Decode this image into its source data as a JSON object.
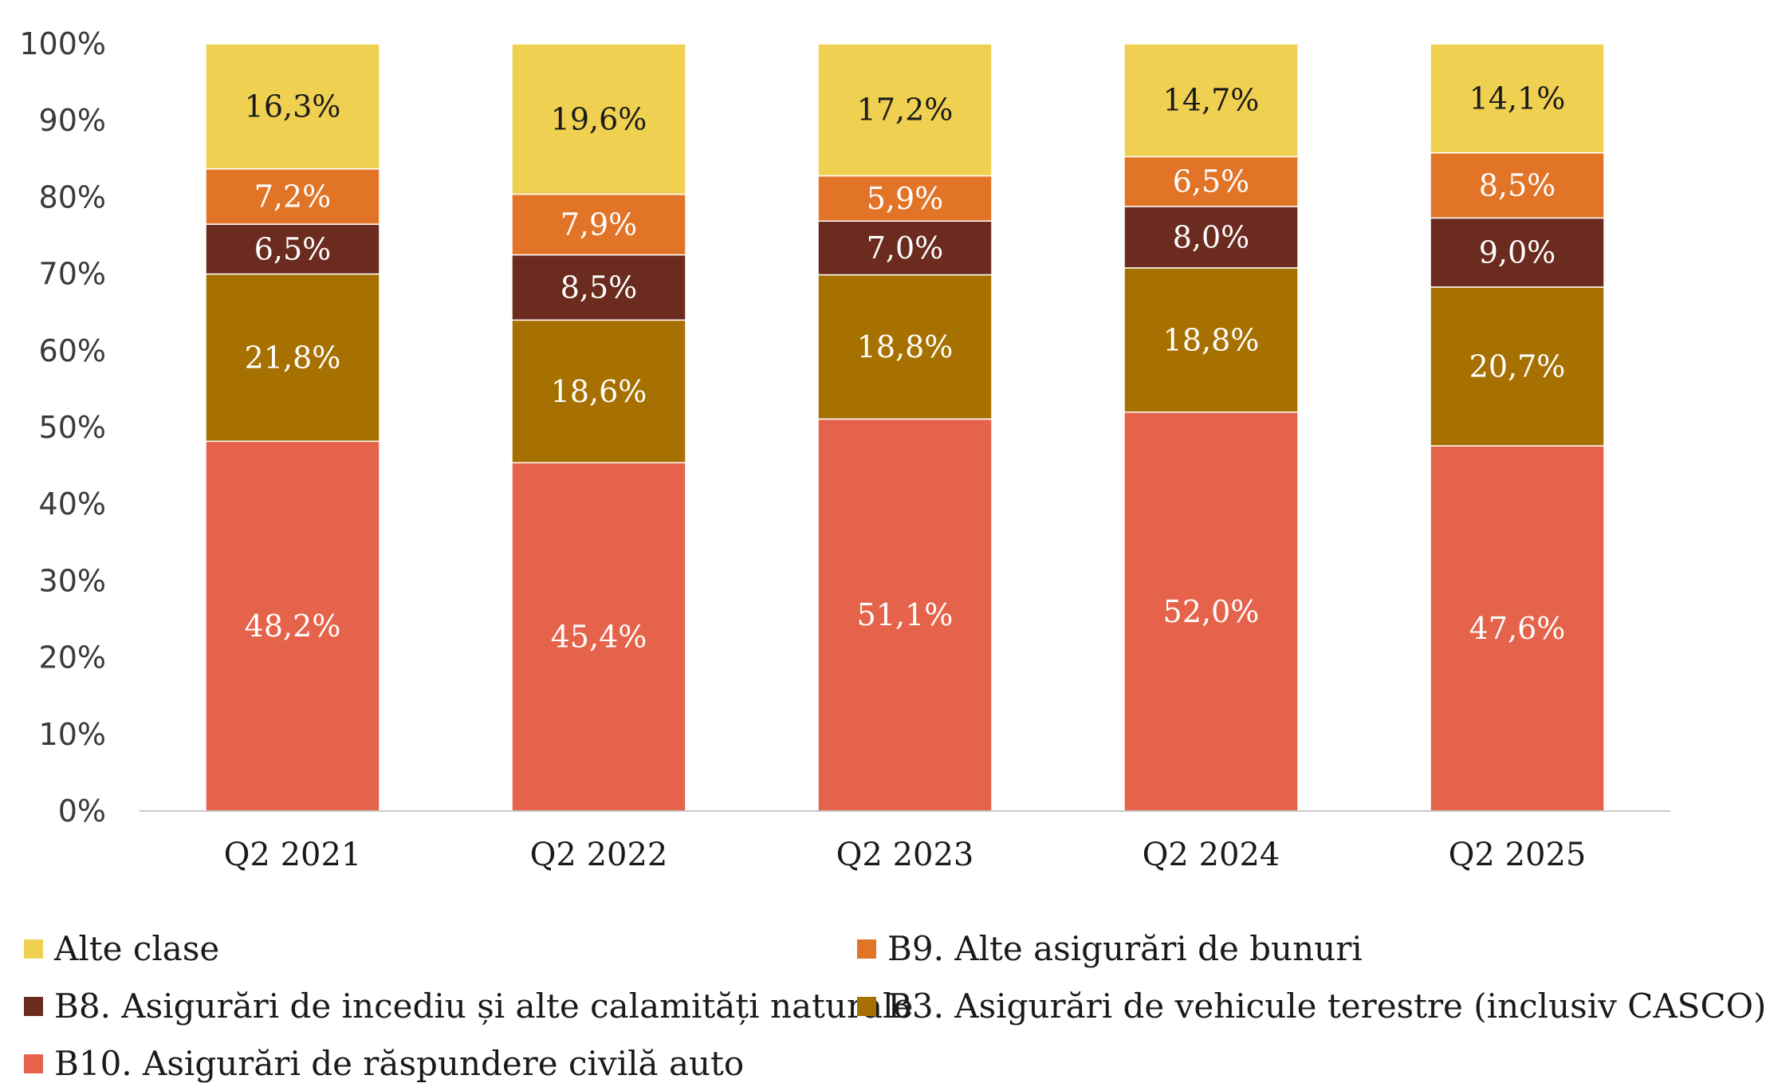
{
  "chart_data": {
    "type": "bar",
    "stacked": true,
    "categories": [
      "Q2 2021",
      "Q2 2022",
      "Q2 2023",
      "Q2 2024",
      "Q2 2025"
    ],
    "ylim": [
      0,
      100
    ],
    "yticks": [
      "0%",
      "10%",
      "20%",
      "30%",
      "40%",
      "50%",
      "60%",
      "70%",
      "80%",
      "90%",
      "100%"
    ],
    "legend_position": "bottom",
    "grid": false,
    "series": [
      {
        "name": "B10. Asigurări de răspundere civilă auto",
        "color": "#E4634A",
        "label_color": "#ffffff",
        "values": [
          48.2,
          45.4,
          51.1,
          52.0,
          47.6
        ],
        "labels": [
          "48,2%",
          "45,4%",
          "51,1%",
          "52,0%",
          "47,6%"
        ]
      },
      {
        "name": "B3. Asigurări de vehicule terestre (inclusiv CASCO)",
        "color": "#A67100",
        "label_color": "#ffffff",
        "values": [
          21.8,
          18.6,
          18.8,
          18.8,
          20.7
        ],
        "labels": [
          "21,8%",
          "18,6%",
          "18,8%",
          "18,8%",
          "20,7%"
        ]
      },
      {
        "name": "B8. Asigurări de incediu și alte calamități naturale",
        "color": "#6B2B1E",
        "label_color": "#ffffff",
        "values": [
          6.5,
          8.5,
          7.0,
          8.0,
          9.0
        ],
        "labels": [
          "6,5%",
          "8,5%",
          "7,0%",
          "8,0%",
          "9,0%"
        ]
      },
      {
        "name": "B9. Alte asigurări de bunuri",
        "color": "#E27428",
        "label_color": "#ffffff",
        "values": [
          7.2,
          7.9,
          5.9,
          6.5,
          8.5
        ],
        "labels": [
          "7,2%",
          "7,9%",
          "5,9%",
          "6,5%",
          "8,5%"
        ]
      },
      {
        "name": "Alte clase",
        "color": "#EFD050",
        "label_color": "#1a1a1a",
        "values": [
          16.3,
          19.6,
          17.2,
          14.7,
          14.1
        ],
        "labels": [
          "16,3%",
          "19,6%",
          "17,2%",
          "14,7%",
          "14,1%"
        ]
      }
    ]
  },
  "legend": {
    "items": [
      {
        "label": "Alte clase",
        "color": "#EFD050"
      },
      {
        "label": "B9. Alte asigurări de bunuri",
        "color": "#E27428"
      },
      {
        "label": "B8. Asigurări de incediu și alte calamități naturale",
        "color": "#6B2B1E"
      },
      {
        "label": "B3. Asigurări de vehicule terestre (inclusiv CASCO)",
        "color": "#A67100"
      },
      {
        "label": "B10. Asigurări de răspundere civilă auto",
        "color": "#E4634A"
      }
    ]
  }
}
